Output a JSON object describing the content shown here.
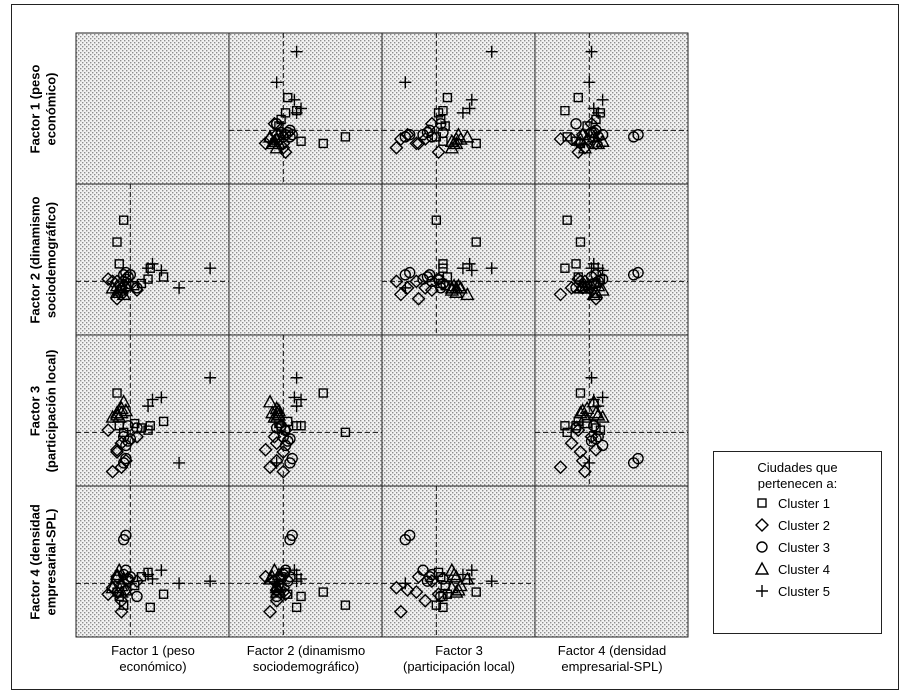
{
  "legend": {
    "title": "Ciudades que\npertenecen a:",
    "items": [
      {
        "label": "Cluster 1",
        "marker": "square"
      },
      {
        "label": "Cluster 2",
        "marker": "diamond"
      },
      {
        "label": "Cluster 3",
        "marker": "circle"
      },
      {
        "label": "Cluster 4",
        "marker": "triangle"
      },
      {
        "label": "Cluster 5",
        "marker": "plus"
      }
    ]
  },
  "chart_data": {
    "type": "scatter",
    "subtype": "scatterplot-matrix",
    "variables": [
      "Factor 1 (peso económico)",
      "Factor 2 (dinamismo sociodemográfico)",
      "Factor 3 (participación local)",
      "Factor 4 (densidad empresarial-SPL)"
    ],
    "row_labels": [
      "Factor 1 (peso\neconómico)",
      "Factor 2 (dinamismo\nsociodemográfico)",
      "Factor 3\n(participación local)",
      "Factor 4 (densidad\nempresarial-SPL)"
    ],
    "column_labels": [
      "Factor 1 (peso\neconómico)",
      "Factor 2 (dinamismo\nsociodemográfico)",
      "Factor 3\n(participación local)",
      "Factor 4 (densidad\nempresarial-SPL)"
    ],
    "axis_range": [
      -2,
      4
    ],
    "reference_lines_at": 0,
    "background": "dotted-grid",
    "cities": [
      {
        "cluster": 1,
        "f": [
          -0.3,
          2.8,
          0.0,
          -1.0
        ]
      },
      {
        "cluster": 1,
        "f": [
          -0.6,
          1.8,
          1.8,
          -0.4
        ]
      },
      {
        "cluster": 1,
        "f": [
          -0.5,
          0.8,
          0.3,
          -0.6
        ]
      },
      {
        "cluster": 1,
        "f": [
          0.2,
          -0.2,
          0.4,
          -0.1
        ]
      },
      {
        "cluster": 1,
        "f": [
          0.8,
          0.1,
          0.1,
          0.5
        ]
      },
      {
        "cluster": 1,
        "f": [
          0.9,
          0.6,
          0.3,
          -1.1
        ]
      },
      {
        "cluster": 1,
        "f": [
          1.5,
          0.2,
          0.5,
          -0.5
        ]
      },
      {
        "cluster": 1,
        "f": [
          0.5,
          -0.1,
          0.2,
          0.3
        ]
      },
      {
        "cluster": 2,
        "f": [
          -0.8,
          0.0,
          -1.8,
          -0.2
        ]
      },
      {
        "cluster": 2,
        "f": [
          -0.4,
          -0.6,
          -1.6,
          -1.3
        ]
      },
      {
        "cluster": 2,
        "f": [
          -0.2,
          -0.3,
          -1.3,
          -0.3
        ]
      },
      {
        "cluster": 2,
        "f": [
          -0.6,
          0.0,
          -0.9,
          -0.4
        ]
      },
      {
        "cluster": 2,
        "f": [
          -0.4,
          -0.3,
          -0.5,
          -0.8
        ]
      },
      {
        "cluster": 2,
        "f": [
          -1.0,
          0.1,
          0.1,
          -0.5
        ]
      },
      {
        "cluster": 2,
        "f": [
          0.3,
          -0.4,
          -0.2,
          0.1
        ]
      },
      {
        "cluster": 2,
        "f": [
          -0.6,
          -0.8,
          -0.8,
          0.3
        ]
      },
      {
        "cluster": 3,
        "f": [
          -0.3,
          0.3,
          -1.4,
          2.0
        ]
      },
      {
        "cluster": 3,
        "f": [
          -0.2,
          0.4,
          -1.2,
          2.2
        ]
      },
      {
        "cluster": 3,
        "f": [
          -0.2,
          0.1,
          -0.6,
          0.6
        ]
      },
      {
        "cluster": 3,
        "f": [
          0.0,
          0.3,
          -0.3,
          0.3
        ]
      },
      {
        "cluster": 3,
        "f": [
          -0.1,
          -0.1,
          0.3,
          0.2
        ]
      },
      {
        "cluster": 3,
        "f": [
          -0.3,
          0.0,
          -0.2,
          0.4
        ]
      },
      {
        "cluster": 3,
        "f": [
          0.3,
          -0.3,
          0.2,
          -0.6
        ]
      },
      {
        "cluster": 3,
        "f": [
          -0.1,
          0.2,
          -0.4,
          0.1
        ]
      },
      {
        "cluster": 4,
        "f": [
          -0.8,
          -0.3,
          0.7,
          -0.2
        ]
      },
      {
        "cluster": 4,
        "f": [
          -0.6,
          -0.5,
          0.9,
          0.3
        ]
      },
      {
        "cluster": 4,
        "f": [
          -0.4,
          -0.3,
          1.1,
          -0.1
        ]
      },
      {
        "cluster": 4,
        "f": [
          -0.6,
          -0.2,
          0.8,
          0.4
        ]
      },
      {
        "cluster": 4,
        "f": [
          -0.3,
          -0.6,
          1.4,
          0.2
        ]
      },
      {
        "cluster": 4,
        "f": [
          -0.2,
          -0.2,
          1.0,
          -0.3
        ]
      },
      {
        "cluster": 4,
        "f": [
          -0.5,
          -0.4,
          0.7,
          0.6
        ]
      },
      {
        "cluster": 4,
        "f": [
          -0.4,
          -0.3,
          0.9,
          -0.4
        ]
      },
      {
        "cluster": 5,
        "f": [
          3.6,
          0.6,
          2.5,
          0.1
        ]
      },
      {
        "cluster": 5,
        "f": [
          1.0,
          0.8,
          1.5,
          0.2
        ]
      },
      {
        "cluster": 5,
        "f": [
          1.4,
          0.5,
          1.6,
          0.6
        ]
      },
      {
        "cluster": 5,
        "f": [
          2.2,
          -0.3,
          -1.4,
          0.0
        ]
      },
      {
        "cluster": 5,
        "f": [
          0.8,
          0.6,
          1.2,
          0.4
        ]
      }
    ]
  },
  "colors": {
    "plot_background": "#d7d7d7",
    "marker": "#000000",
    "frame": "#222222"
  }
}
